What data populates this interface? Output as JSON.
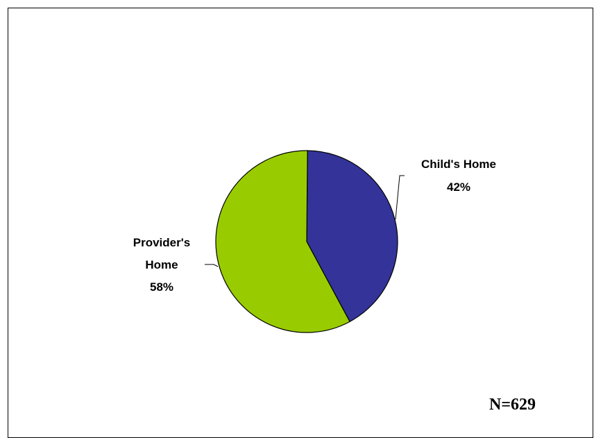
{
  "chart_data": {
    "type": "pie",
    "slices": [
      {
        "name": "Child's Home",
        "label_line1": "Child's Home",
        "label_line2": "",
        "value": 42,
        "value_label": "42%",
        "color": "#333399"
      },
      {
        "name": "Provider's Home",
        "label_line1": "Provider's",
        "label_line2": "Home",
        "value": 58,
        "value_label": "58%",
        "color": "#99CC00"
      }
    ],
    "legend": "none",
    "annotation": "N=629"
  }
}
